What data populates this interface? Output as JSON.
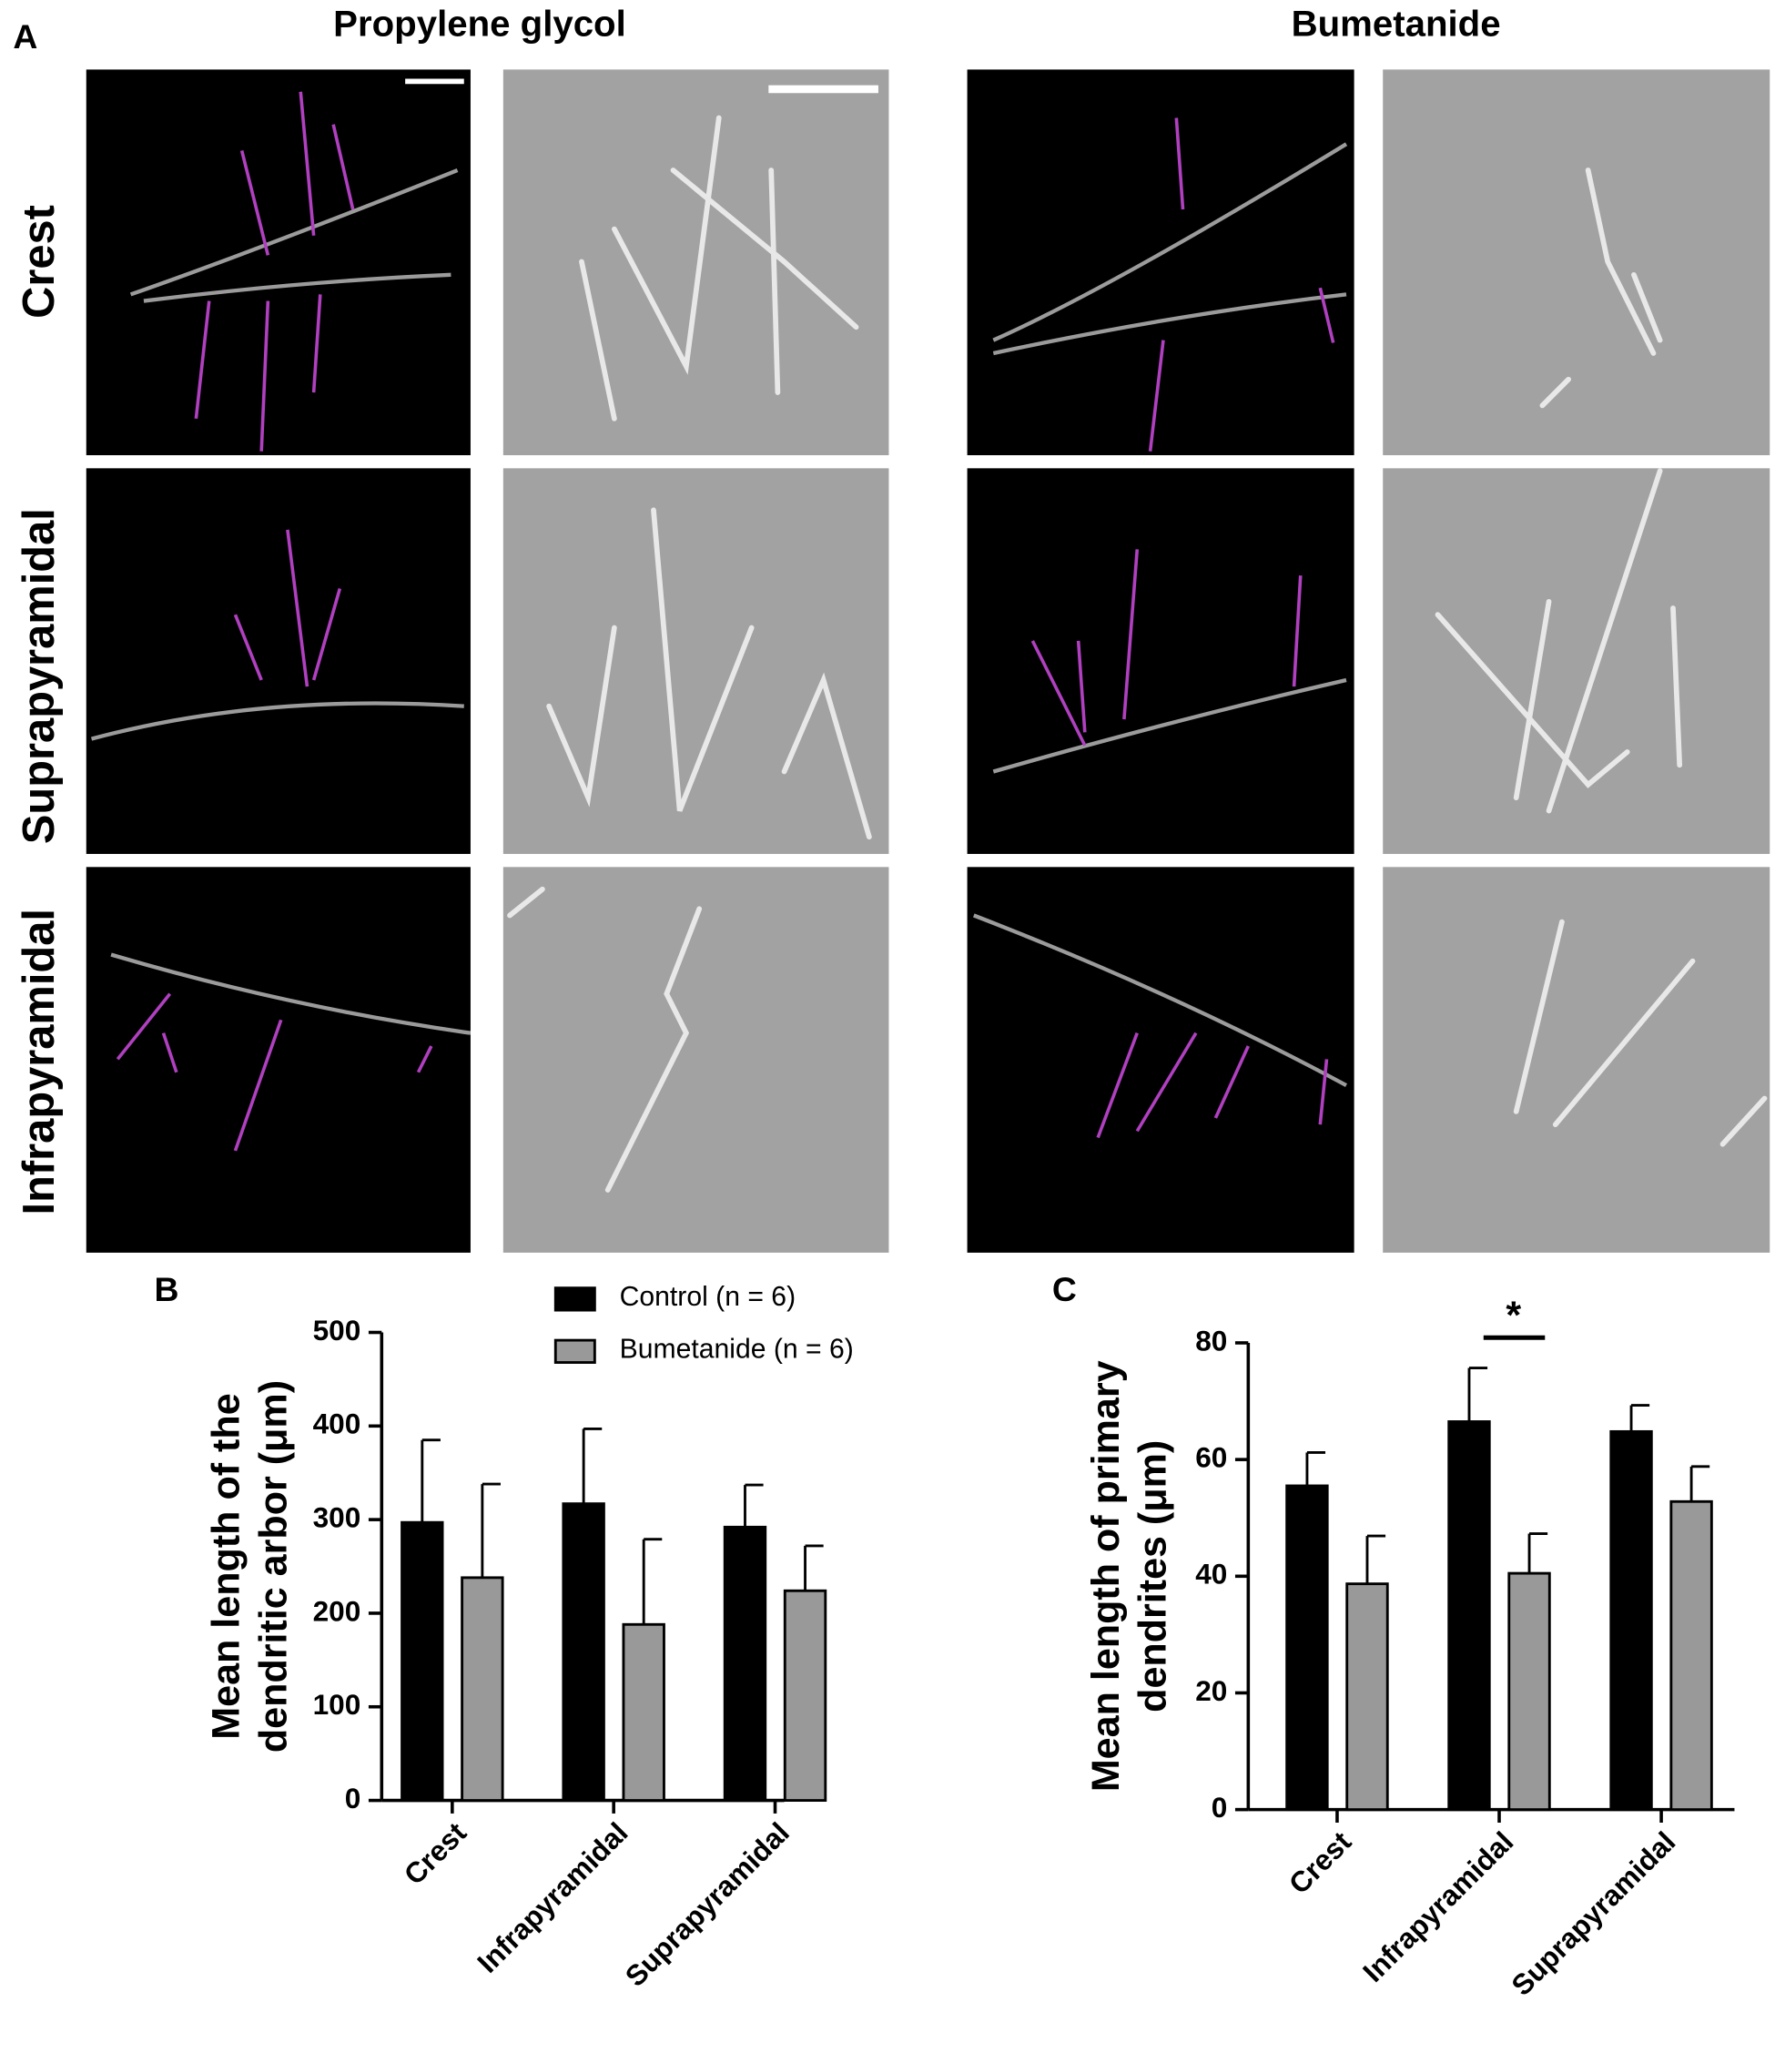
{
  "figure": {
    "panel_labels": [
      "A",
      "B",
      "C"
    ],
    "column_titles": [
      "Propylene glycol",
      "Bumetanide"
    ],
    "row_labels": [
      "Crest",
      "Suprapyramidal",
      "Infrapyramidal"
    ]
  },
  "chart_data": [
    {
      "type": "bar",
      "ylabel": [
        "Mean length of the",
        "dendritic arbor (μm)"
      ],
      "categories": [
        "Crest",
        "Infrapyramidal",
        "Suprapyramidal"
      ],
      "series": [
        {
          "name": "Control (n = 6)",
          "color": "#000000",
          "values": [
            297,
            317,
            292
          ],
          "errors": [
            88,
            80,
            45
          ]
        },
        {
          "name": "Bumetanide (n = 6)",
          "color": "#999999",
          "values": [
            238,
            188,
            224
          ],
          "errors": [
            100,
            91,
            48
          ]
        }
      ],
      "ylim": [
        0,
        500
      ],
      "yticks": [
        0,
        100,
        200,
        300,
        400,
        500
      ]
    },
    {
      "type": "bar",
      "ylabel": [
        "Mean length of primary",
        "dendrites (μm)"
      ],
      "categories": [
        "Crest",
        "Infrapyramidal",
        "Suprapyramidal"
      ],
      "series": [
        {
          "color": "#000000",
          "values": [
            55.5,
            66.5,
            64.8
          ],
          "errors": [
            5.7,
            9.2,
            4.5
          ]
        },
        {
          "color": "#999999",
          "values": [
            38.7,
            40.5,
            52.8
          ],
          "errors": [
            8.2,
            6.8,
            6
          ]
        }
      ],
      "annotation": "*",
      "ylim": [
        0,
        80
      ],
      "yticks": [
        0,
        20,
        40,
        60,
        80
      ]
    }
  ]
}
